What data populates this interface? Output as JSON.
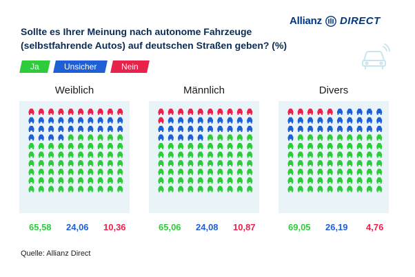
{
  "title": "Sollte es Ihrer Meinung nach autonome Fahrzeuge (selbstfahrende Autos) auf deutschen Straßen geben? (%)",
  "logo": {
    "brand": "Allianz",
    "product": "DIRECT"
  },
  "source": "Quelle: Allianz Direct",
  "colors": {
    "ja": "#2ecc3b",
    "unsicher": "#1f5fd6",
    "nein": "#e8234b",
    "panel_bg": "#e9f4f8"
  },
  "chart_data": {
    "type": "waffle",
    "categories": [
      "Ja",
      "Unsicher",
      "Nein"
    ],
    "groups": [
      {
        "name": "Weiblich",
        "values": [
          65.58,
          24.06,
          10.36
        ],
        "labels": [
          "65,58",
          "24,06",
          "10,36"
        ]
      },
      {
        "name": "Männlich",
        "values": [
          65.06,
          24.08,
          10.87
        ],
        "labels": [
          "65,06",
          "24,08",
          "10,87"
        ]
      },
      {
        "name": "Divers",
        "values": [
          69.05,
          26.19,
          4.76
        ],
        "labels": [
          "69,05",
          "26,19",
          "4,76"
        ]
      }
    ],
    "grid": {
      "rows": 10,
      "cols": 10
    },
    "order_from_top": [
      "Nein",
      "Unsicher",
      "Ja"
    ]
  }
}
